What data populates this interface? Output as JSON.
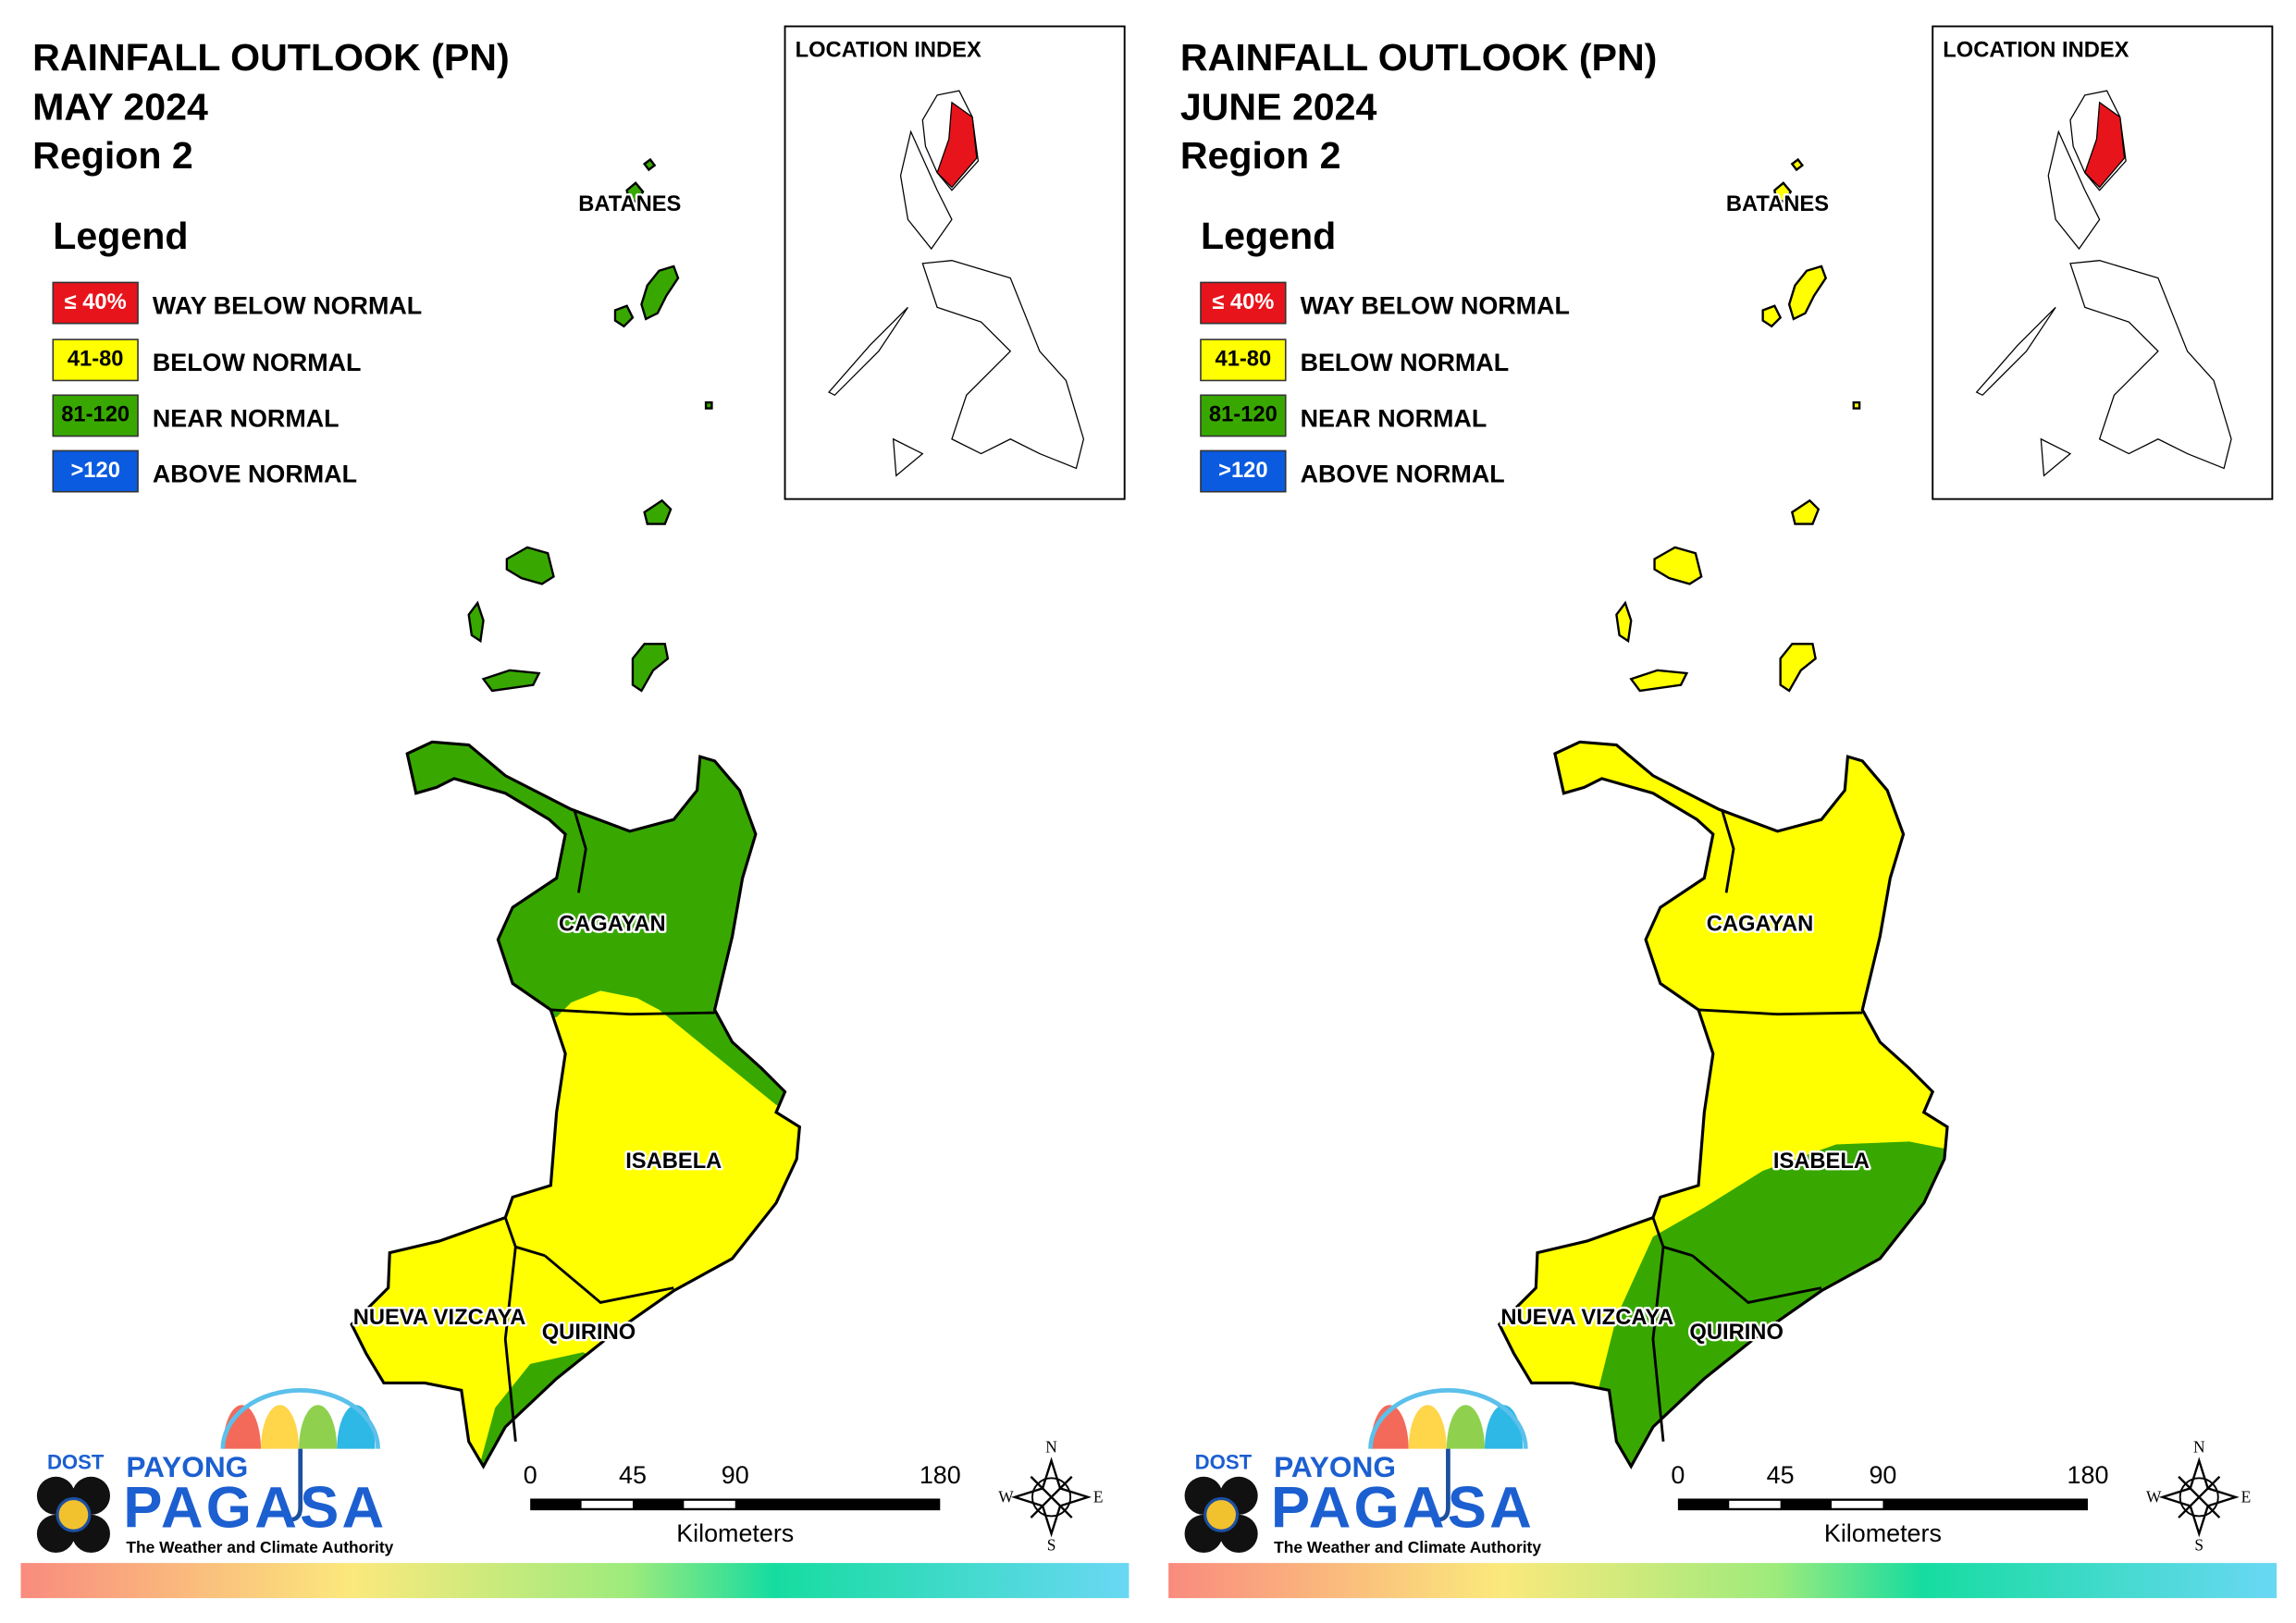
{
  "panels": [
    {
      "title": "RAINFALL OUTLOOK (PN)",
      "month": "MAY 2024",
      "region": "Region 2",
      "legend_title": "Legend",
      "legend": [
        {
          "range": "≤ 40%",
          "label": "WAY BELOW NORMAL",
          "color": "#e8141c"
        },
        {
          "range": "41-80",
          "label": "BELOW NORMAL",
          "color": "#ffff00"
        },
        {
          "range": "81-120",
          "label": "NEAR NORMAL",
          "color": "#38a800"
        },
        {
          "range": ">120",
          "label": "ABOVE NORMAL",
          "color": "#0a5be0"
        }
      ],
      "location_index": "LOCATION INDEX",
      "provinces": [
        "BATANES",
        "CAGAYAN",
        "ISABELA",
        "NUEVA VIZCAYA",
        "QUIRINO"
      ],
      "scale": {
        "ticks": [
          "0",
          "45",
          "90",
          "180"
        ],
        "unit": "Kilometers"
      },
      "compass": [
        "N",
        "E",
        "S",
        "W"
      ],
      "logo": {
        "agency": "DOST",
        "name_top": "PAYONG",
        "name": "PAGASA",
        "tagline": "The Weather and Climate Authority"
      }
    },
    {
      "title": "RAINFALL OUTLOOK (PN)",
      "month": "JUNE 2024",
      "region": "Region 2",
      "legend_title": "Legend",
      "legend": [
        {
          "range": "≤ 40%",
          "label": "WAY BELOW NORMAL",
          "color": "#e8141c"
        },
        {
          "range": "41-80",
          "label": "BELOW NORMAL",
          "color": "#ffff00"
        },
        {
          "range": "81-120",
          "label": "NEAR NORMAL",
          "color": "#38a800"
        },
        {
          "range": ">120",
          "label": "ABOVE NORMAL",
          "color": "#0a5be0"
        }
      ],
      "location_index": "LOCATION INDEX",
      "provinces": [
        "BATANES",
        "CAGAYAN",
        "ISABELA",
        "NUEVA VIZCAYA",
        "QUIRINO"
      ],
      "scale": {
        "ticks": [
          "0",
          "45",
          "90",
          "180"
        ],
        "unit": "Kilometers"
      },
      "compass": [
        "N",
        "E",
        "S",
        "W"
      ],
      "logo": {
        "agency": "DOST",
        "name_top": "PAYONG",
        "name": "PAGASA",
        "tagline": "The Weather and Climate Authority"
      }
    }
  ]
}
